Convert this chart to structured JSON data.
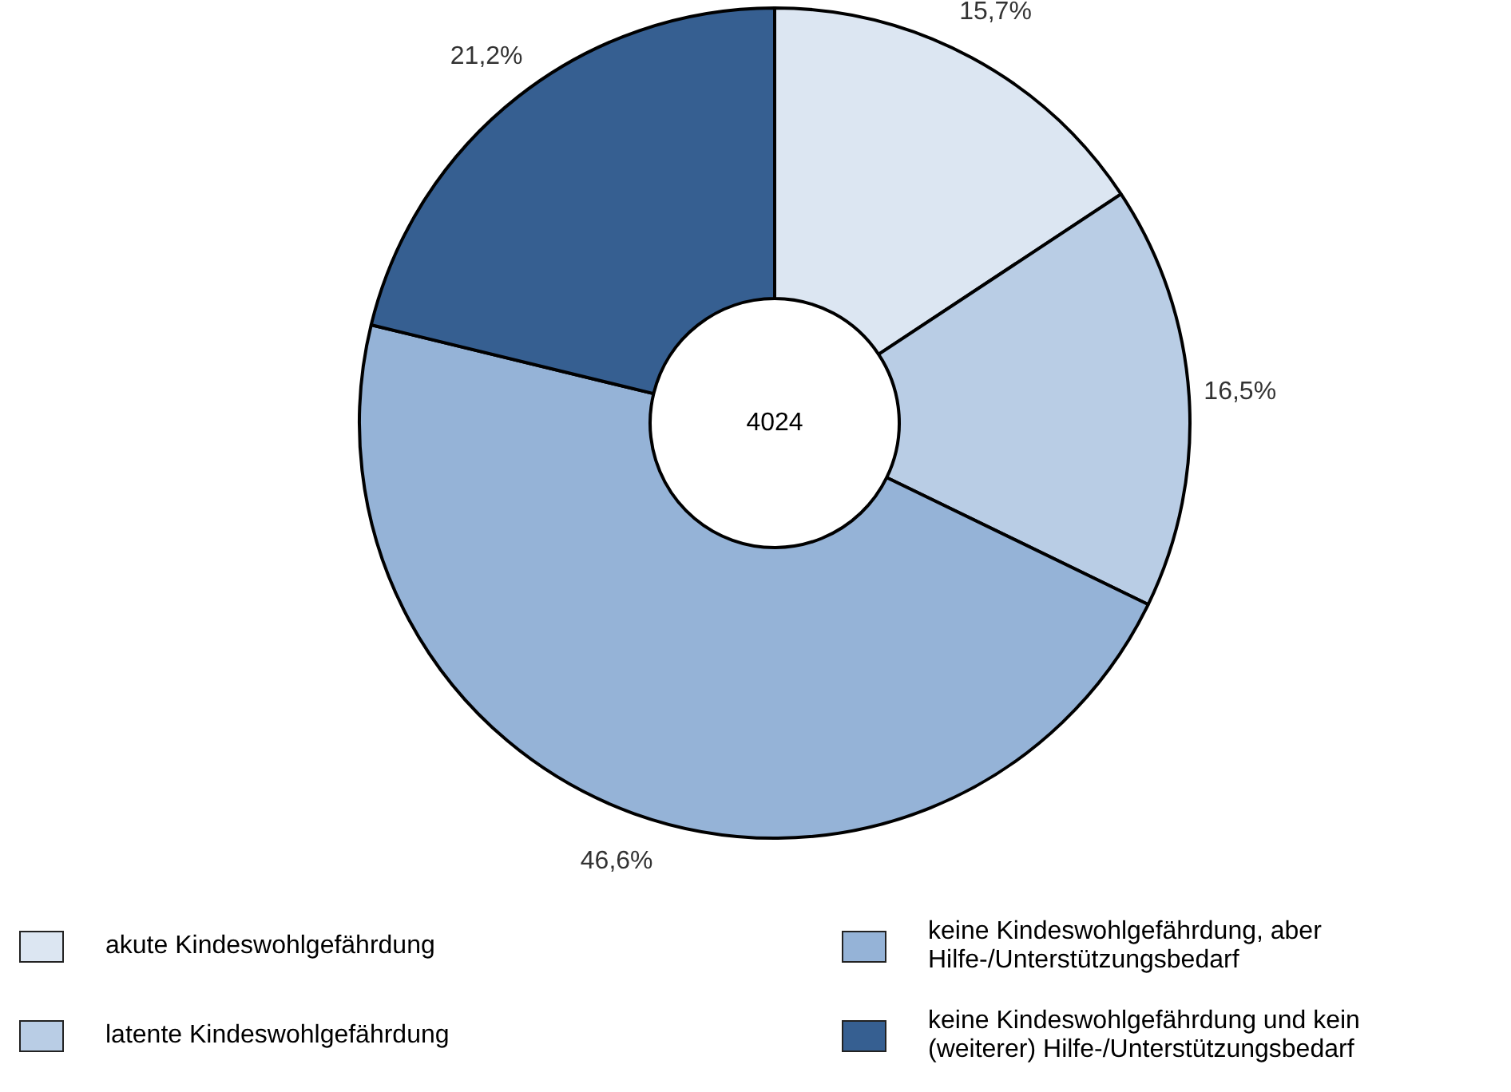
{
  "chart_data": {
    "type": "donut",
    "categories": [
      "akute Kindeswohlgefährdung",
      "latente Kindeswohlgefährdung",
      "keine Kindeswohlgefährdung, aber Hilfe-/Unterstützungsbedarf",
      "keine Kindeswohlgefährdung und kein (weiterer) Hilfe-/Unterstützungsbedarf"
    ],
    "values": [
      15.7,
      16.5,
      46.6,
      21.2
    ],
    "colors": [
      "#dce6f2",
      "#b9cde5",
      "#95b3d7",
      "#365f91"
    ],
    "value_labels": [
      "15,7%",
      "16,5%",
      "46,6%",
      "21,2%"
    ],
    "annotations": [
      "4024"
    ],
    "legend": "bottom"
  }
}
